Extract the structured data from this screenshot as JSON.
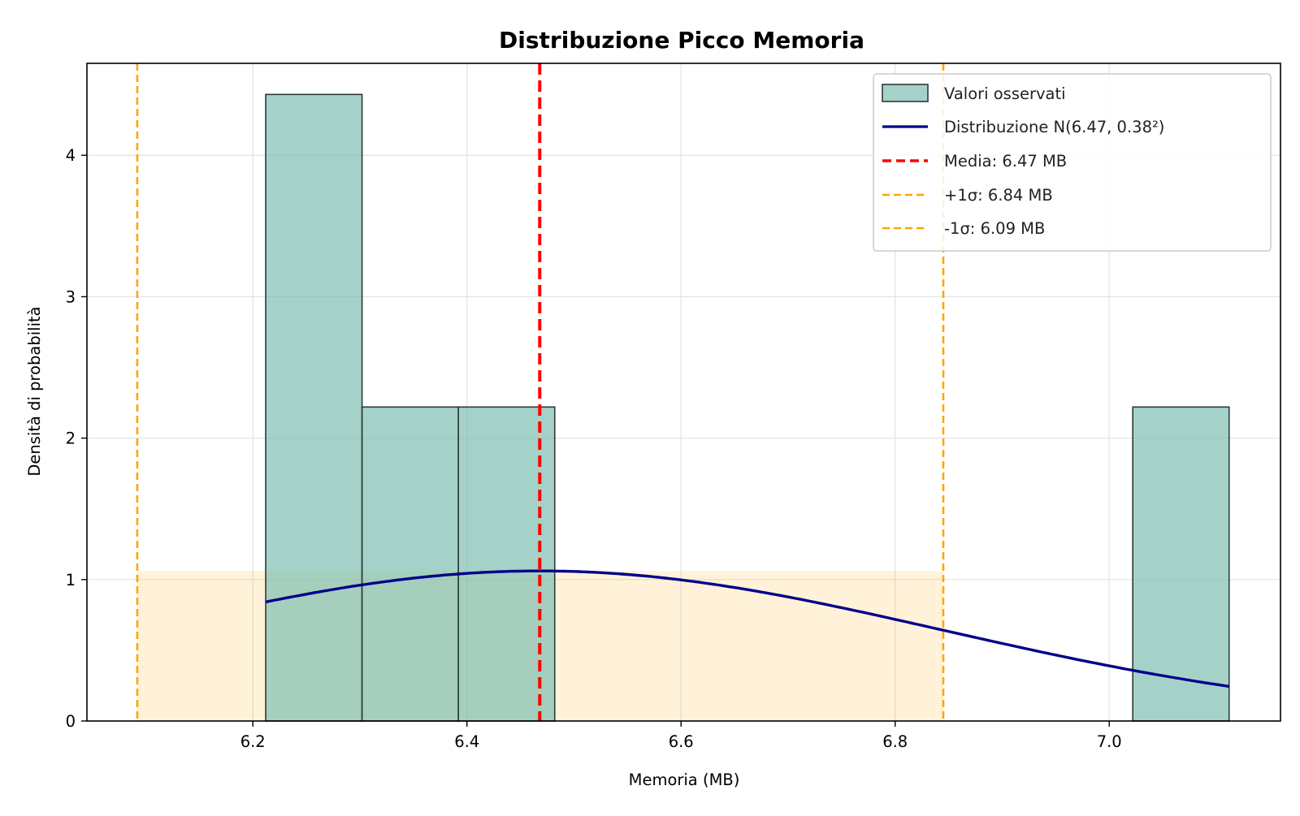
{
  "chart_data": {
    "type": "bar",
    "title": "Distribuzione Picco Memoria",
    "xlabel": "Memoria (MB)",
    "ylabel": "Densità di probabilità",
    "xlim": [
      6.045,
      7.16
    ],
    "ylim": [
      0,
      4.65
    ],
    "x_ticks": [
      6.2,
      6.4,
      6.6,
      6.8,
      7.0
    ],
    "x_tick_labels": [
      "6.2",
      "6.4",
      "6.6",
      "6.8",
      "7.0"
    ],
    "y_ticks": [
      0,
      1,
      2,
      3,
      4
    ],
    "y_tick_labels": [
      "0",
      "1",
      "2",
      "3",
      "4"
    ],
    "grid": true,
    "legend_position": "top-right",
    "histogram": {
      "name": "Valori osservati",
      "color": "#7fbfb0",
      "edge_color": "#2b3b38",
      "bins": [
        {
          "start": 6.212,
          "end": 6.302,
          "density": 4.43
        },
        {
          "start": 6.302,
          "end": 6.392,
          "density": 2.22
        },
        {
          "start": 6.392,
          "end": 6.482,
          "density": 2.22
        },
        {
          "start": 6.482,
          "end": 6.572,
          "density": 0
        },
        {
          "start": 6.572,
          "end": 6.662,
          "density": 0
        },
        {
          "start": 6.662,
          "end": 6.752,
          "density": 0
        },
        {
          "start": 6.752,
          "end": 6.842,
          "density": 0
        },
        {
          "start": 6.842,
          "end": 6.932,
          "density": 0
        },
        {
          "start": 6.932,
          "end": 7.022,
          "density": 0
        },
        {
          "start": 7.022,
          "end": 7.112,
          "density": 2.22
        }
      ]
    },
    "normal_curve": {
      "name": "Distribuzione N(6.47, 0.38²)",
      "mean": 6.468,
      "std": 0.376,
      "x_range": [
        6.212,
        7.112
      ],
      "color": "#00008b"
    },
    "mean_line": {
      "name": "Media: 6.47 MB",
      "x": 6.468,
      "color": "#ff0000"
    },
    "plus_sigma_line": {
      "name": "+1σ: 6.84 MB",
      "x": 6.845,
      "color": "#ffa500"
    },
    "minus_sigma_line": {
      "name": "-1σ: 6.09 MB",
      "x": 6.092,
      "color": "#ffa500"
    },
    "sigma_band": {
      "x_range": [
        6.092,
        6.845
      ],
      "y_max": 1.06,
      "color": "#ffa500"
    }
  }
}
